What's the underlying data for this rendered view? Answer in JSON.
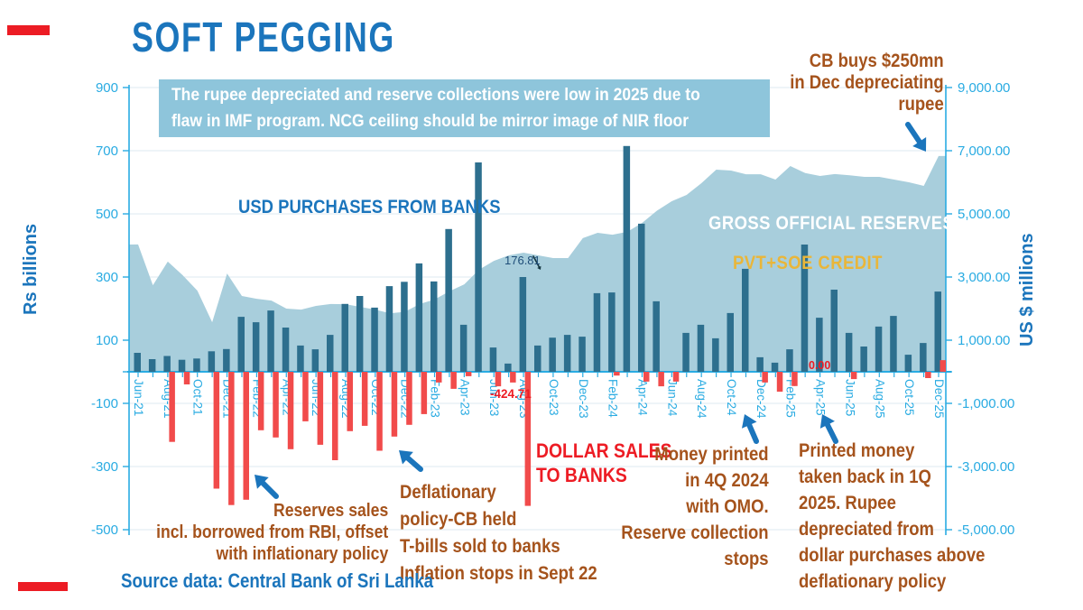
{
  "page": {
    "title": "SOFT PEGGING"
  },
  "colors": {
    "accent_blue": "#1B75BC",
    "axis_blue": "#29ABE2",
    "bar_teal": "#2D6F8E",
    "bar_red": "#F14B4B",
    "area_blue": "#A8CEDC",
    "box_blue": "#8EC5DB",
    "brown": "#A5531C",
    "gold": "#E9B63A",
    "red": "#ED1C24",
    "gridline": "#DEEAF2"
  },
  "annotations": {
    "info_box": {
      "lines": [
        "The rupee depreciated and reserve collections were low in 2025 due to",
        "flaw in IMF program. NCG ceiling should be mirror image of NIR floor"
      ]
    },
    "cb_buys": {
      "lines": [
        "CB buys $250mn",
        "in Dec depreciating",
        "rupee"
      ]
    },
    "usd_purchases_label": "USD PURCHASES FROM BANKS",
    "gross_reserves_label": "GROSS OFFICIAL RESERVES",
    "pvt_soe_label": "PVT+SOE CREDIT",
    "value_176": "176.81",
    "value_neg424": "-424.71",
    "value_zero": "0.00",
    "dollar_sales": {
      "lines": [
        "DOLLAR SALES",
        "TO BANKS"
      ]
    },
    "money_printed": {
      "lines": [
        "Money printed",
        "in 4Q 2024",
        "with OMO.",
        "Reserve collection",
        "stops"
      ]
    },
    "printed_money": {
      "lines": [
        "Printed money",
        "taken back in 1Q",
        "2025. Rupee",
        "depreciated from",
        "dollar purchases above",
        "deflationary policy"
      ]
    },
    "reserves_sales": {
      "lines": [
        "Reserves sales",
        "incl. borrowed from RBI, offset",
        "with inflationary policy"
      ]
    },
    "deflationary": {
      "lines": [
        "Deflationary",
        "policy-CB held",
        "T-bills sold to banks",
        "Inflation stops in Sept 22"
      ]
    },
    "source": "Source data: Central Bank of Sri Lanka"
  },
  "chart_data": {
    "type": "combo",
    "x": [
      "Jun-21",
      "Jul-21",
      "Aug-21",
      "Sep-21",
      "Oct-21",
      "Nov-21",
      "Dec-21",
      "Jan-22",
      "Feb-22",
      "Mar-22",
      "Apr-22",
      "May-22",
      "Jun-22",
      "Jul-22",
      "Aug-22",
      "Sep-22",
      "Oct-22",
      "Nov-22",
      "Dec-22",
      "Jan-23",
      "Feb-23",
      "Mar-23",
      "Apr-23",
      "May-23",
      "Jun-23",
      "Jul-23",
      "Aug-23",
      "Sep-23",
      "Oct-23",
      "Nov-23",
      "Dec-23",
      "Jan-24",
      "Feb-24",
      "Mar-24",
      "Apr-24",
      "May-24",
      "Jun-24",
      "Jul-24",
      "Aug-24",
      "Sep-24",
      "Oct-24",
      "Nov-24",
      "Dec-24",
      "Jan-25",
      "Feb-25",
      "Mar-25",
      "Apr-25",
      "May-25",
      "Jun-25",
      "Jul-25",
      "Aug-25",
      "Sep-25",
      "Oct-25",
      "Nov-25",
      "Dec-25"
    ],
    "x_axis": {
      "label_every": 2
    },
    "grid": true,
    "series": [
      {
        "name": "USD PURCHASES FROM BANKS",
        "type": "bar",
        "axis": "left",
        "color": "#2D6F8E",
        "values": [
          60,
          40,
          50,
          38,
          42,
          65,
          72,
          174,
          157,
          194,
          140,
          83,
          71,
          117,
          215,
          240,
          203,
          271,
          285,
          343,
          286,
          452,
          149,
          663,
          77,
          26,
          300,
          83,
          108,
          117,
          111,
          249,
          251,
          715,
          469,
          223,
          0,
          123,
          149,
          106,
          186,
          326,
          46,
          29,
          71,
          403,
          171,
          260,
          123,
          80,
          143,
          177,
          54,
          91,
          254
        ]
      },
      {
        "name": "DOLLAR SALES TO BANKS",
        "type": "bar",
        "axis": "left",
        "color": "#F14B4B",
        "values": [
          0,
          0,
          -222,
          -40,
          0,
          -370,
          -422,
          -405,
          -185,
          -208,
          -245,
          -157,
          -231,
          -280,
          -188,
          -171,
          -250,
          -205,
          -168,
          -134,
          -34,
          -54,
          -14,
          0,
          -46,
          -34,
          -424.71,
          0,
          0,
          0,
          0,
          0,
          -12,
          0,
          -31,
          -46,
          -31,
          0,
          0,
          0,
          0,
          0,
          -34,
          -63,
          -45,
          0,
          0,
          0,
          -23,
          0,
          0,
          0,
          0,
          -20,
          37
        ]
      },
      {
        "name": "GROSS OFFICIAL RESERVES",
        "type": "area",
        "axis": "right",
        "color": "#A8CEDC",
        "values": [
          4030,
          2740,
          3490,
          3060,
          2570,
          1570,
          3110,
          2400,
          2310,
          2255,
          2000,
          1970,
          2085,
          2145,
          2140,
          2055,
          1970,
          1850,
          1900,
          2145,
          2290,
          2545,
          2770,
          3230,
          3510,
          3685,
          3770,
          3685,
          3600,
          3600,
          4230,
          4400,
          4340,
          4430,
          4715,
          5100,
          5400,
          5600,
          5970,
          6400,
          6370,
          6255,
          6255,
          6085,
          6515,
          6290,
          6200,
          6260,
          6220,
          6170,
          6170,
          6085,
          6000,
          5885,
          6830
        ]
      }
    ],
    "left_axis": {
      "title": "Rs billions",
      "min": -500,
      "max": 900,
      "tick_step": 200,
      "ticks": [
        900,
        700,
        500,
        300,
        100,
        -100,
        -300,
        -500
      ],
      "tick_labels": [
        "900",
        "700",
        "500",
        "300",
        "100",
        "-100",
        "-300",
        "-500"
      ]
    },
    "right_axis": {
      "title": "US $ millions",
      "min": -5000,
      "max": 9000,
      "tick_step": 2000,
      "ticks": [
        9000,
        7000,
        5000,
        3000,
        1000,
        -1000,
        -3000,
        -5000
      ],
      "tick_labels": [
        "9,000.00",
        "7,000.00",
        "5,000.00",
        "3,000.00",
        "1,000.00",
        "-1,000.00",
        "-3,000.00",
        "-5,000.00"
      ]
    }
  }
}
